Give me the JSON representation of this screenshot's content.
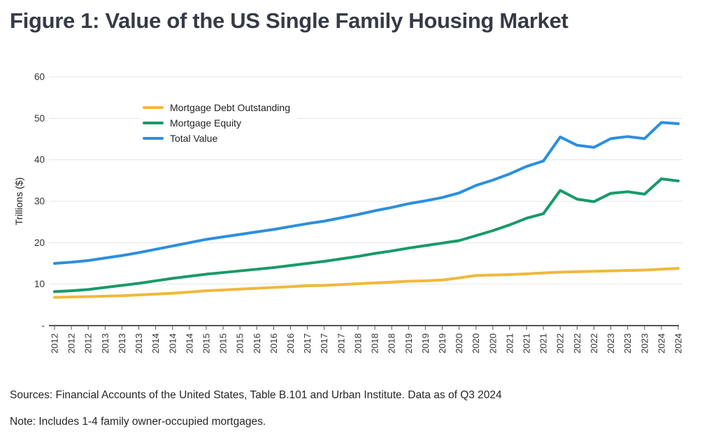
{
  "title": "Figure 1: Value of the US Single Family Housing Market",
  "chart_data": {
    "type": "line",
    "title": "Figure 1: Value of the US Single Family Housing Market",
    "ylabel": "Trillions ($)",
    "ylim": [
      0,
      60
    ],
    "grid": "horizontal",
    "legend_position": "top-left-inside",
    "yticks": [
      {
        "value": 0,
        "label": "-"
      },
      {
        "value": 10,
        "label": "10"
      },
      {
        "value": 20,
        "label": "20"
      },
      {
        "value": 30,
        "label": "30"
      },
      {
        "value": 40,
        "label": "40"
      },
      {
        "value": 50,
        "label": "50"
      },
      {
        "value": 60,
        "label": "60"
      }
    ],
    "categories": [
      "2012",
      "2012",
      "2012",
      "2013",
      "2013",
      "2013",
      "2014",
      "2014",
      "2014",
      "2015",
      "2015",
      "2015",
      "2016",
      "2016",
      "2016",
      "2017",
      "2017",
      "2017",
      "2018",
      "2018",
      "2018",
      "2019",
      "2019",
      "2019",
      "2020",
      "2020",
      "2020",
      "2021",
      "2021",
      "2021",
      "2022",
      "2022",
      "2022",
      "2023",
      "2023",
      "2023",
      "2024",
      "2024"
    ],
    "series": [
      {
        "name": "Mortgage Debt Outstanding",
        "color": "#F0B93C",
        "values": [
          6.8,
          6.9,
          7.0,
          7.1,
          7.2,
          7.4,
          7.6,
          7.8,
          8.1,
          8.4,
          8.6,
          8.8,
          9.0,
          9.2,
          9.4,
          9.6,
          9.7,
          9.9,
          10.1,
          10.3,
          10.5,
          10.7,
          10.8,
          11.0,
          11.5,
          12.1,
          12.2,
          12.3,
          12.5,
          12.7,
          12.9,
          13.0,
          13.1,
          13.2,
          13.3,
          13.4,
          13.6,
          13.8
        ]
      },
      {
        "name": "Mortgage Equity",
        "color": "#189A68",
        "values": [
          8.2,
          8.4,
          8.7,
          9.2,
          9.7,
          10.2,
          10.8,
          11.4,
          11.9,
          12.4,
          12.8,
          13.2,
          13.6,
          14.0,
          14.5,
          15.0,
          15.5,
          16.1,
          16.7,
          17.4,
          18.0,
          18.7,
          19.3,
          19.9,
          20.5,
          21.7,
          22.9,
          24.3,
          25.9,
          27.0,
          32.6,
          30.5,
          29.9,
          31.9,
          32.3,
          31.7,
          35.4,
          34.9
        ]
      },
      {
        "name": "Total Value",
        "color": "#2B8FDE",
        "values": [
          15.0,
          15.3,
          15.7,
          16.3,
          16.9,
          17.6,
          18.4,
          19.2,
          20.0,
          20.8,
          21.4,
          22.0,
          22.6,
          23.2,
          23.9,
          24.6,
          25.2,
          26.0,
          26.8,
          27.7,
          28.5,
          29.4,
          30.1,
          30.9,
          32.0,
          33.8,
          35.1,
          36.6,
          38.4,
          39.7,
          45.5,
          43.5,
          43.0,
          45.1,
          45.6,
          45.1,
          49.0,
          48.7
        ]
      }
    ]
  },
  "footer": {
    "sources": "Sources: Financial Accounts of the United States, Table B.101 and Urban Institute. Data as of Q3 2024",
    "note": "Note: Includes 1-4 family owner-occupied mortgages."
  }
}
